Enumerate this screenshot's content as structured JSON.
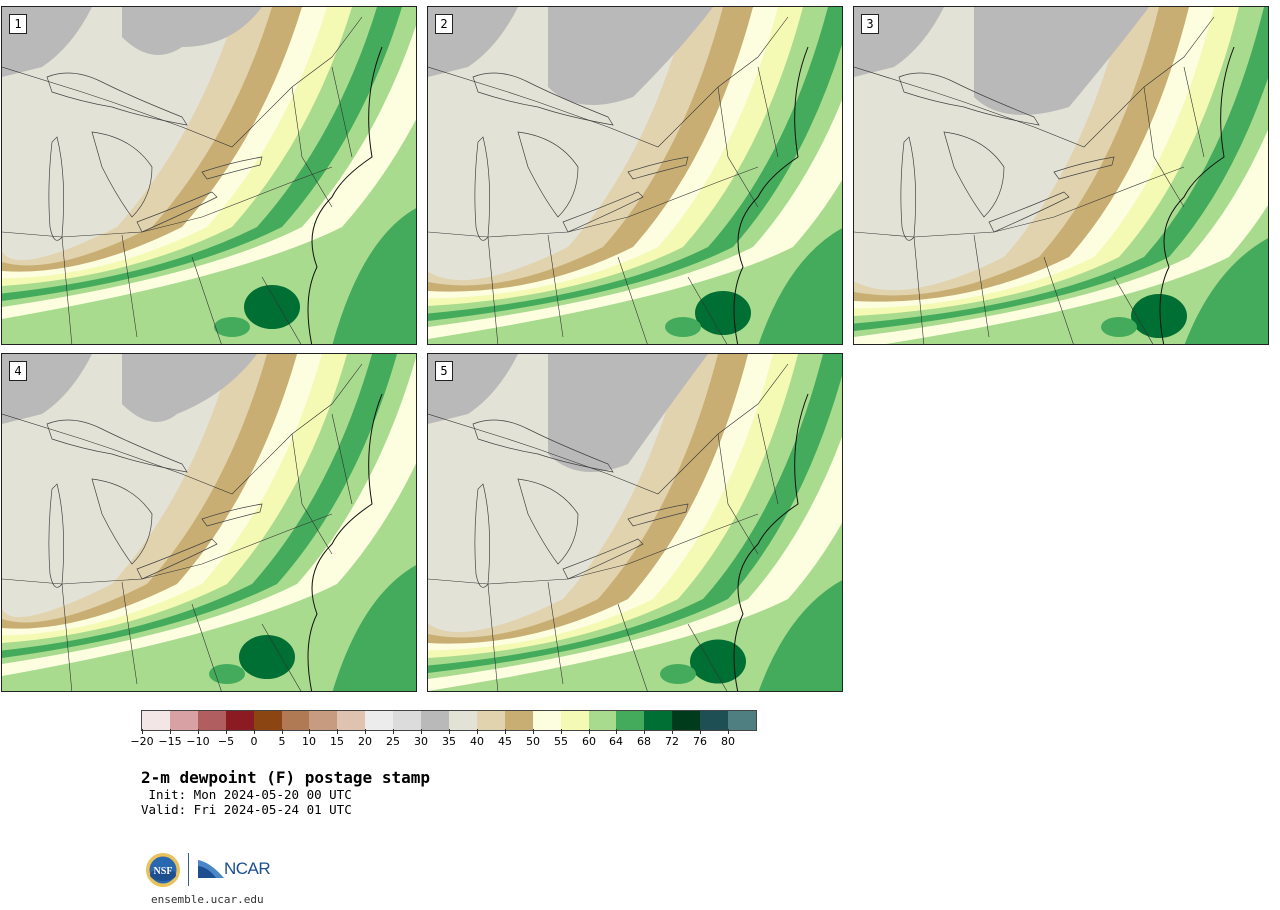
{
  "panels": [
    {
      "label": "1"
    },
    {
      "label": "2"
    },
    {
      "label": "3"
    },
    {
      "label": "4"
    },
    {
      "label": "5"
    }
  ],
  "colorbar": {
    "ticks": [
      "−20",
      "−15",
      "−10",
      "−5",
      "0",
      "5",
      "10",
      "15",
      "20",
      "25",
      "30",
      "35",
      "40",
      "45",
      "50",
      "55",
      "60",
      "64",
      "68",
      "72",
      "76",
      "80"
    ],
    "colors": [
      "#f2e6e6",
      "#d8a1a3",
      "#b05e60",
      "#8a1b22",
      "#8b4513",
      "#b07a55",
      "#c79b80",
      "#e0c2b0",
      "#ececec",
      "#dcdcdc",
      "#b9b9b9",
      "#e2e2d6",
      "#e0d3ad",
      "#c8ae73",
      "#fdfde0",
      "#f4f9b3",
      "#a9db8e",
      "#44ab5c",
      "#006f33",
      "#003b1c",
      "#1d4f55",
      "#4f7f80"
    ]
  },
  "title": "2-m dewpoint (F) postage stamp",
  "init": " Init: Mon 2024-05-20 00 UTC",
  "valid": "Valid: Fri 2024-05-24 01 UTC",
  "logos": {
    "nsf": "NSF",
    "ncar": "NCAR"
  },
  "site": "ensemble.ucar.edu",
  "map_colors": {
    "gray_dark": "#b9b9b9",
    "gray_light": "#e2e2d6",
    "tan_light": "#e0d3ad",
    "tan": "#c8ae73",
    "cream": "#fdfde0",
    "yellow": "#f4f9b3",
    "green_light": "#a9db8e",
    "green": "#44ab5c",
    "green_dark": "#006f33"
  }
}
